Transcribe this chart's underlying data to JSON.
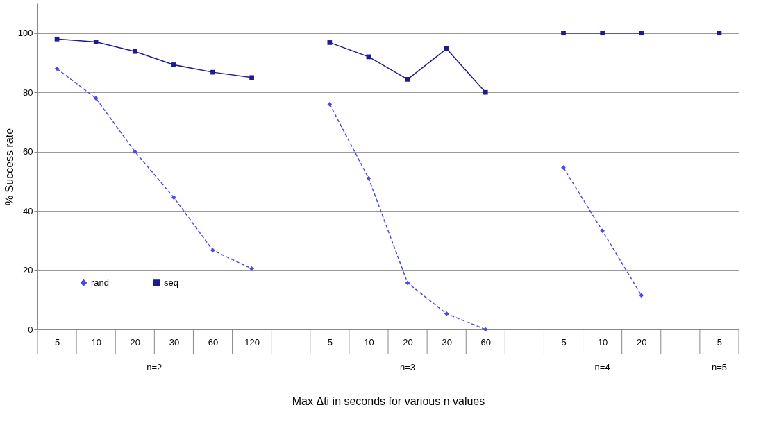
{
  "chart_data": {
    "type": "line",
    "xlabel": "Max  Δti in seconds for various n values",
    "ylabel": "% Success rate",
    "categories": [
      "5",
      "10",
      "20",
      "30",
      "60",
      "120",
      null,
      "5",
      "10",
      "20",
      "30",
      "60",
      null,
      "5",
      "10",
      "20",
      null,
      "5"
    ],
    "series": [
      {
        "name": "rand",
        "color": "#4a4ae6",
        "marker": "diamond",
        "line_style": "dashed",
        "values": [
          88,
          78,
          60,
          44.5,
          26.7,
          20.5,
          null,
          76,
          51,
          15.7,
          5.3,
          0,
          null,
          54.6,
          33.3,
          11.5,
          null,
          null
        ]
      },
      {
        "name": "seq",
        "color": "#1c1a94",
        "marker": "square",
        "line_style": "solid",
        "values": [
          98,
          97,
          93.8,
          89.3,
          86.8,
          85,
          null,
          96.8,
          92,
          84.4,
          94.7,
          80,
          null,
          100,
          100,
          100,
          null,
          100
        ]
      }
    ],
    "annotations": [
      "n=2",
      "n=3",
      "n=4",
      "n=5"
    ],
    "ylim": [
      0,
      110
    ],
    "yticks": [
      0,
      20,
      40,
      60,
      80,
      100
    ],
    "grid": "y",
    "legend": "bottom left"
  }
}
